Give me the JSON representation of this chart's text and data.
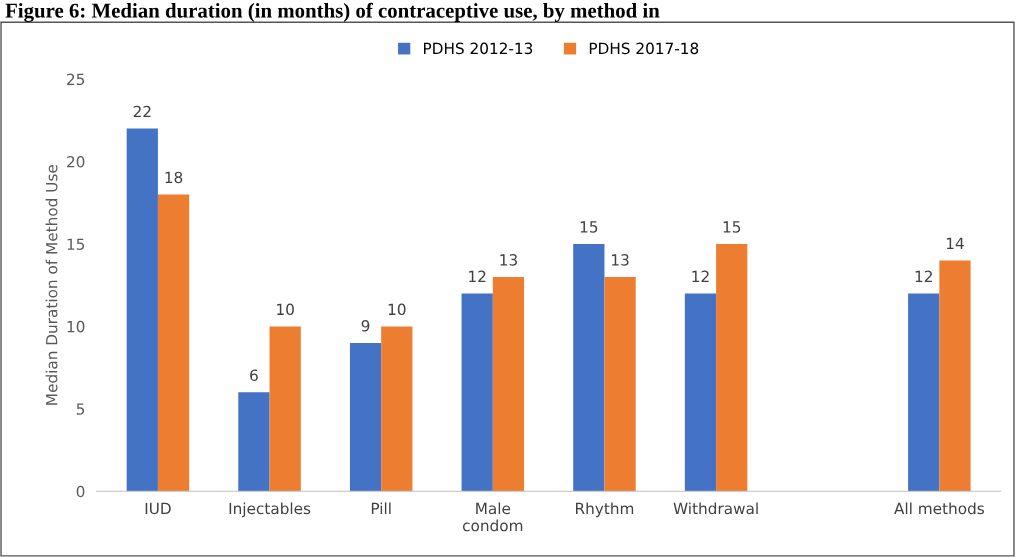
{
  "chart_data": {
    "type": "bar",
    "title": "Figure 6: Median duration (in months) of contraceptive use, by method in",
    "ylabel": "Median Duration of Method Use",
    "categories": [
      "IUD",
      "Injectables",
      "Pill",
      "Male\ncondom",
      "Rhythm",
      "Withdrawal",
      null,
      "All methods"
    ],
    "series": [
      {
        "name": "PDHS 2012-13",
        "color": "#4472c4",
        "values": [
          22,
          6,
          9,
          12,
          15,
          12,
          null,
          12
        ]
      },
      {
        "name": "PDHS 2017-18",
        "color": "#ed7d31",
        "values": [
          18,
          10,
          10,
          13,
          13,
          15,
          null,
          14
        ]
      }
    ],
    "ylim": [
      0,
      25
    ],
    "yticks": [
      0,
      5,
      10,
      15,
      20,
      25
    ],
    "data_labels": true,
    "legend": "top",
    "grid": false
  }
}
